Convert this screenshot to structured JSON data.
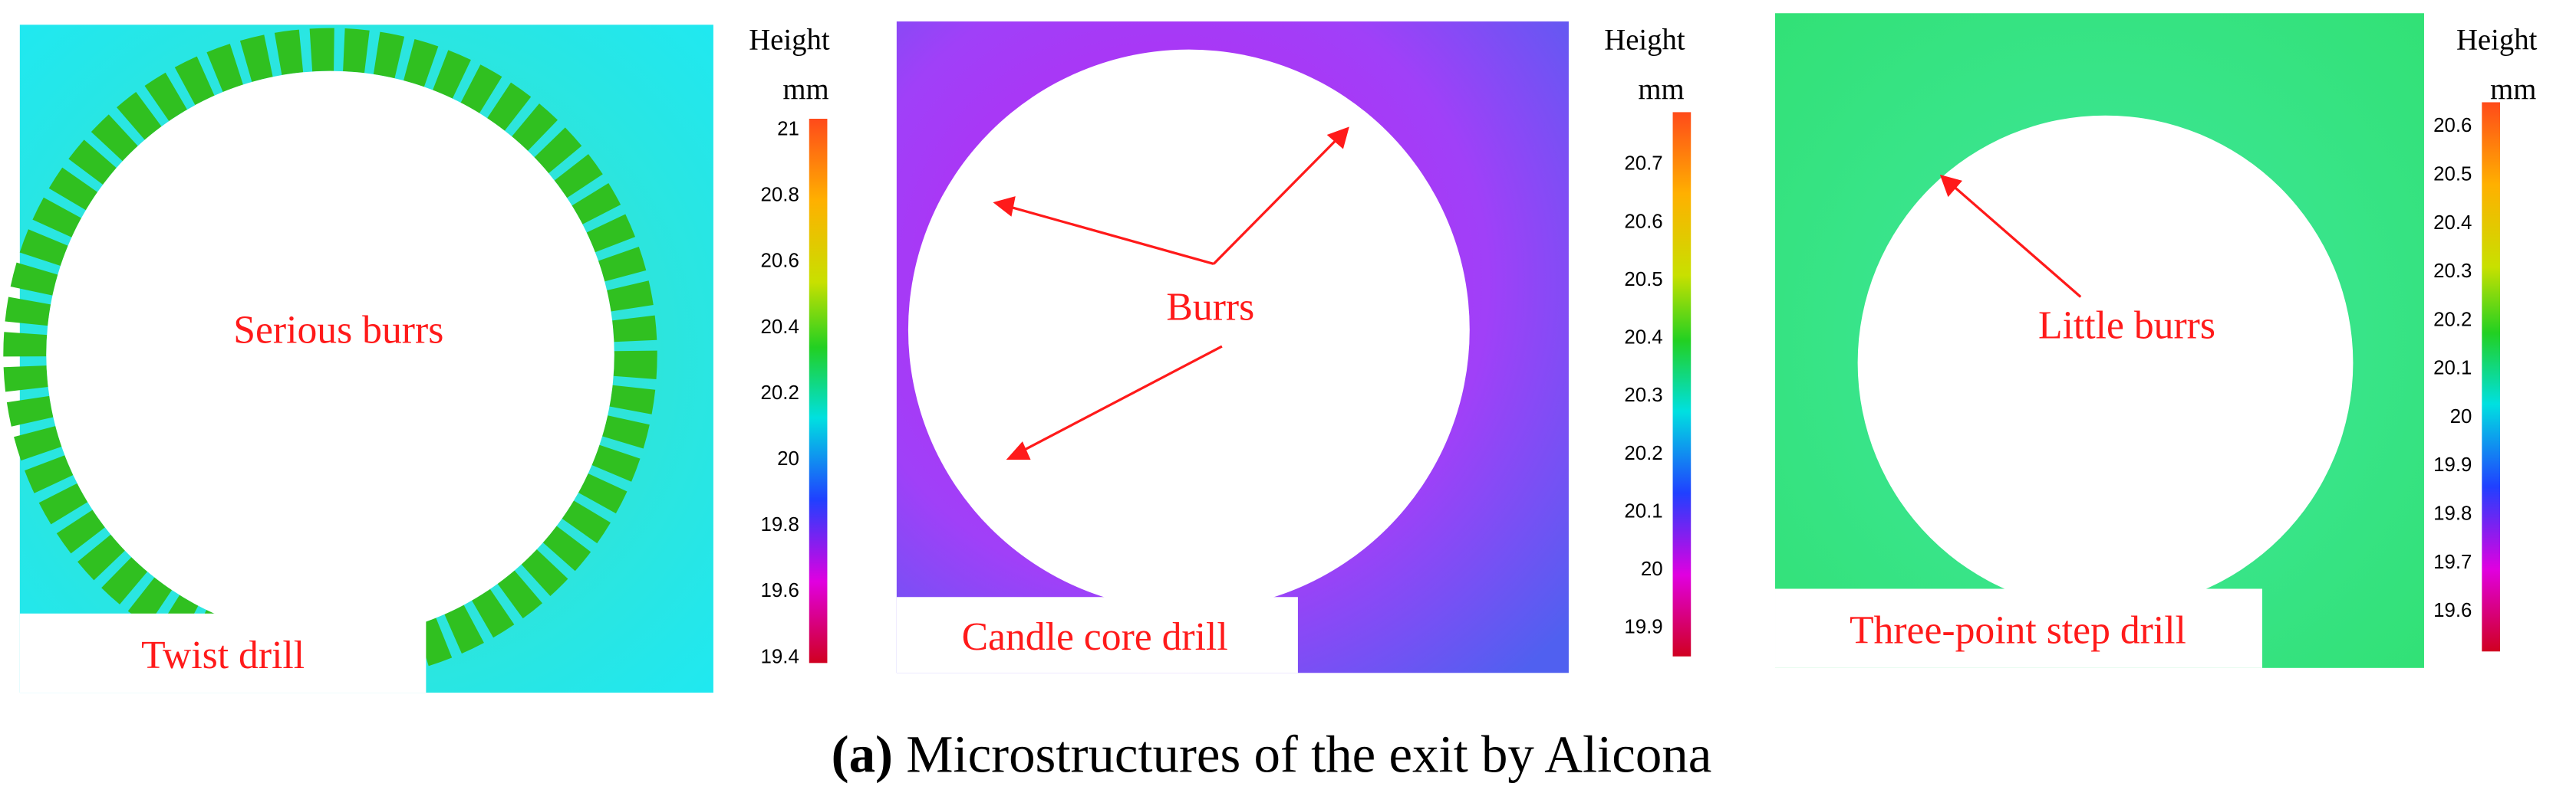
{
  "panels": [
    {
      "label": "Twist drill",
      "annotations": [
        "Serious burrs"
      ],
      "colorbar": {
        "title": "Height",
        "unit": "mm",
        "ticks": [
          "21",
          "20.8",
          "20.6",
          "20.4",
          "20.2",
          "20",
          "19.8",
          "19.6",
          "19.4"
        ]
      }
    },
    {
      "label": "Candle core drill",
      "annotations": [
        "Burrs"
      ],
      "colorbar": {
        "title": "Height",
        "unit": "mm",
        "ticks": [
          "20.7",
          "20.6",
          "20.5",
          "20.4",
          "20.3",
          "20.2",
          "20.1",
          "20",
          "19.9"
        ]
      }
    },
    {
      "label": "Three-point step drill",
      "annotations": [
        "Little burrs"
      ],
      "colorbar": {
        "title": "Height",
        "unit": "mm",
        "ticks": [
          "20.6",
          "20.5",
          "20.4",
          "20.3",
          "20.2",
          "20.1",
          "20",
          "19.9",
          "19.8",
          "19.7",
          "19.6"
        ]
      }
    }
  ],
  "caption": {
    "label": "(a)",
    "text": "Microstructures of the exit by Alicona"
  }
}
